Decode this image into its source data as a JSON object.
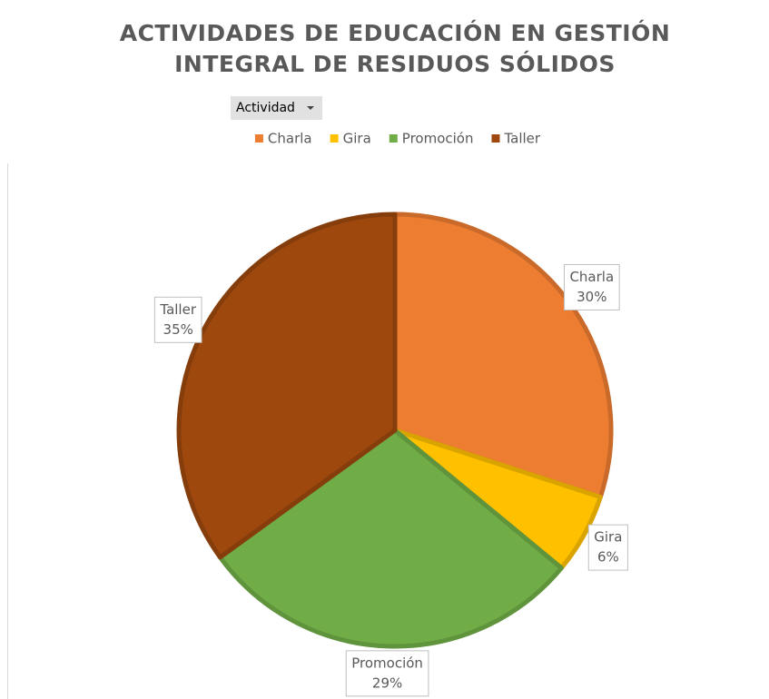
{
  "chart_data": {
    "type": "pie",
    "title": "ACTIVIDADES DE EDUCACIÓN EN GESTIÓN INTEGRAL DE RESIDUOS SÓLIDOS",
    "filter_button": "Actividad",
    "categories": [
      "Charla",
      "Gira",
      "Promoción",
      "Taller"
    ],
    "values": [
      30,
      6,
      29,
      35
    ],
    "value_labels": [
      "30%",
      "6%",
      "29%",
      "35%"
    ],
    "colors": [
      "#ED7D31",
      "#FFC000",
      "#70AD47",
      "#9E480E"
    ],
    "legend": "top"
  }
}
